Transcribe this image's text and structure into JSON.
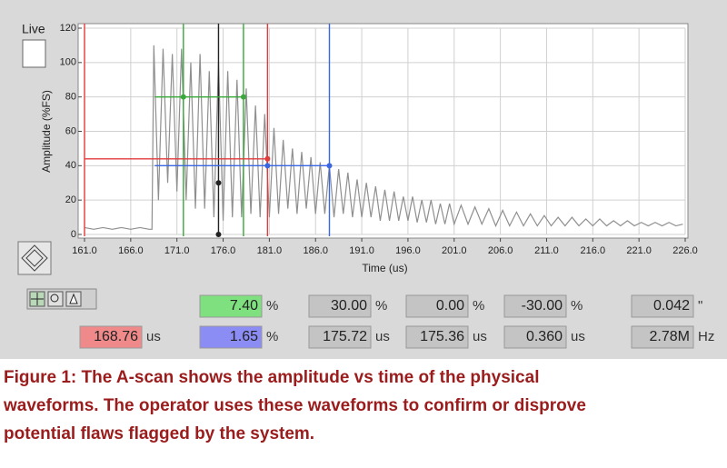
{
  "live_label": "Live",
  "chart_data": {
    "type": "line",
    "x_label": "Time (us)",
    "y_label": "Amplitude (%FS)",
    "xlim": [
      161,
      226
    ],
    "ylim": [
      0,
      120
    ],
    "xticks": [
      {
        "value": 161,
        "label": "161.0"
      },
      {
        "value": 166,
        "label": "166.0"
      },
      {
        "value": 171,
        "label": "171.0"
      },
      {
        "value": 176,
        "label": "176.0"
      },
      {
        "value": 181,
        "label": "181.0"
      },
      {
        "value": 186,
        "label": "186.0"
      },
      {
        "value": 191,
        "label": "191.0"
      },
      {
        "value": 196,
        "label": "196.0"
      },
      {
        "value": 201,
        "label": "201.0"
      },
      {
        "value": 206,
        "label": "206.0"
      },
      {
        "value": 211,
        "label": "211.0"
      },
      {
        "value": 216,
        "label": "216.0"
      },
      {
        "value": 221,
        "label": "221.0"
      },
      {
        "value": 226,
        "label": "226.0"
      }
    ],
    "yticks": [
      0,
      20,
      40,
      60,
      80,
      100,
      120
    ],
    "grid": true,
    "series": [
      {
        "color": "#8f8f8f",
        "x": [
          161,
          162,
          163,
          164,
          165,
          166,
          167,
          168,
          168.3,
          168.5,
          169,
          169.5,
          170,
          170.5,
          171,
          171.5,
          172,
          172.5,
          173,
          173.5,
          174,
          174.5,
          175,
          175.5,
          176,
          176.5,
          177,
          177.5,
          178,
          178.5,
          179,
          179.5,
          180,
          180.5,
          181,
          181.5,
          182,
          182.5,
          183,
          183.5,
          184,
          184.5,
          185,
          185.5,
          186,
          186.5,
          187,
          187.5,
          188,
          188.5,
          189,
          189.5,
          190,
          190.5,
          191,
          191.5,
          192,
          192.5,
          193,
          193.5,
          194,
          194.5,
          195,
          195.5,
          196,
          196.5,
          197,
          197.5,
          198,
          198.5,
          199,
          199.5,
          200,
          200.5,
          201,
          201.75,
          202.5,
          203.25,
          204,
          204.75,
          205.5,
          206.25,
          207,
          207.75,
          208.5,
          209.25,
          210,
          210.75,
          211.5,
          212.25,
          213,
          213.75,
          214.5,
          215.25,
          216,
          216.75,
          217.5,
          218.25,
          219,
          219.75,
          220.5,
          221.25,
          222,
          222.75,
          223.5,
          224.25,
          225,
          225.75
        ],
        "values": [
          4,
          3,
          4,
          3,
          4,
          3,
          4,
          3,
          3,
          110,
          20,
          108,
          30,
          105,
          25,
          108,
          20,
          100,
          15,
          105,
          15,
          95,
          10,
          100,
          8,
          95,
          10,
          90,
          10,
          85,
          12,
          75,
          10,
          70,
          10,
          62,
          12,
          55,
          15,
          50,
          12,
          48,
          15,
          45,
          12,
          42,
          12,
          40,
          10,
          38,
          12,
          36,
          10,
          32,
          10,
          30,
          10,
          28,
          8,
          26,
          8,
          25,
          8,
          22,
          8,
          22,
          7,
          20,
          7,
          20,
          6,
          18,
          6,
          18,
          6,
          17,
          6,
          16,
          6,
          15,
          5,
          14,
          5,
          13,
          5,
          12,
          5,
          11,
          5,
          10,
          5,
          10,
          5,
          9,
          5,
          9,
          5,
          8,
          5,
          8,
          5,
          7,
          5,
          7,
          5,
          7,
          5,
          6
        ]
      }
    ],
    "cursors": [
      {
        "x": 161,
        "color": "#e23b3b"
      },
      {
        "x": 180.8,
        "color": "#e23b3b"
      },
      {
        "x": 171.7,
        "color": "#3aa83a"
      },
      {
        "x": 178.2,
        "color": "#3aa83a"
      },
      {
        "x": 187.5,
        "color": "#3b66e2"
      },
      {
        "x": 175.5,
        "color": "#222222"
      }
    ],
    "levels": [
      {
        "y": 44,
        "x": [
          161,
          180.8
        ],
        "color": "#e23b3b"
      },
      {
        "y": 80,
        "x": [
          168.6,
          178.2
        ],
        "color": "#3aa83a"
      },
      {
        "y": 40,
        "x": [
          168.6,
          187.5
        ],
        "color": "#3b66e2"
      }
    ],
    "points": [
      {
        "x": 180.8,
        "y": 44,
        "color": "#e23b3b"
      },
      {
        "x": 171.7,
        "y": 80,
        "color": "#3aa83a"
      },
      {
        "x": 178.2,
        "y": 80,
        "color": "#3aa83a"
      },
      {
        "x": 180.8,
        "y": 40,
        "color": "#3b66e2"
      },
      {
        "x": 187.5,
        "y": 40,
        "color": "#3b66e2"
      },
      {
        "x": 175.5,
        "y": 30,
        "color": "#222222"
      },
      {
        "x": 175.5,
        "y": 0,
        "color": "#222222"
      }
    ]
  },
  "readouts": [
    [
      {
        "value": "7.40",
        "unit": "%",
        "fill": "#7fe07f"
      },
      {
        "value": "30.00",
        "unit": "%",
        "fill": "#c4c4c4"
      },
      {
        "value": "0.00",
        "unit": "%",
        "fill": "#c4c4c4"
      },
      {
        "value": "-30.00",
        "unit": "%",
        "fill": "#c4c4c4"
      },
      {
        "value": "0.042",
        "unit": "\"",
        "fill": "#c4c4c4"
      }
    ],
    [
      {
        "value": "168.76",
        "unit": "us",
        "fill": "#f08a8a"
      },
      {
        "value": "1.65",
        "unit": "%",
        "fill": "#8c8cf5"
      },
      {
        "value": "175.72",
        "unit": "us",
        "fill": "#c4c4c4"
      },
      {
        "value": "175.36",
        "unit": "us",
        "fill": "#c4c4c4"
      },
      {
        "value": "0.360",
        "unit": "us",
        "fill": "#c4c4c4"
      },
      {
        "value": "2.78M",
        "unit": "Hz",
        "fill": "#c4c4c4"
      }
    ]
  ],
  "caption_lines": [
    "Figure 1: The A-scan shows the amplitude vs time of the physical",
    "waveforms.  The operator uses these waveforms to confirm or disprove",
    "potential flaws flagged by the system."
  ]
}
